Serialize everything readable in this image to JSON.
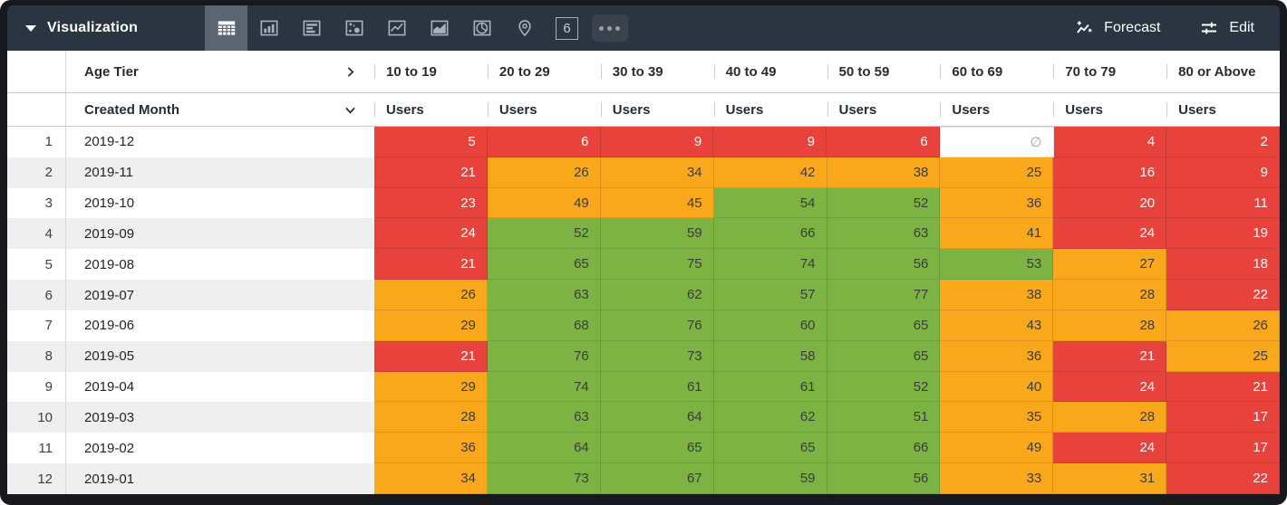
{
  "toolbar": {
    "title": "Visualization",
    "viz_tabs": [
      {
        "name": "table",
        "selected": true
      },
      {
        "name": "bar",
        "selected": false
      },
      {
        "name": "row",
        "selected": false
      },
      {
        "name": "scatter",
        "selected": false
      },
      {
        "name": "line",
        "selected": false
      },
      {
        "name": "area",
        "selected": false
      },
      {
        "name": "pie",
        "selected": false
      },
      {
        "name": "map",
        "selected": false
      },
      {
        "name": "single-value",
        "selected": false,
        "glyph": "6"
      },
      {
        "name": "more",
        "selected": false
      }
    ],
    "forecast_label": "Forecast",
    "edit_label": "Edit"
  },
  "table": {
    "pivot_field": "Age Tier",
    "row_field": "Created Month",
    "measure": "Users",
    "columns": [
      "10 to 19",
      "20 to 29",
      "30 to 39",
      "40 to 49",
      "50 to 59",
      "60 to 69",
      "70 to 79",
      "80 or Above"
    ],
    "null_symbol": "∅",
    "rows": [
      {
        "n": "1",
        "month": "2019-12",
        "cells": [
          [
            5,
            "r"
          ],
          [
            6,
            "r"
          ],
          [
            9,
            "r"
          ],
          [
            9,
            "r"
          ],
          [
            6,
            "r"
          ],
          [
            null,
            "n"
          ],
          [
            4,
            "r"
          ],
          [
            2,
            "r"
          ]
        ]
      },
      {
        "n": "2",
        "month": "2019-11",
        "cells": [
          [
            21,
            "r"
          ],
          [
            26,
            "o"
          ],
          [
            34,
            "o"
          ],
          [
            42,
            "o"
          ],
          [
            38,
            "o"
          ],
          [
            25,
            "o"
          ],
          [
            16,
            "r"
          ],
          [
            9,
            "r"
          ]
        ]
      },
      {
        "n": "3",
        "month": "2019-10",
        "cells": [
          [
            23,
            "r"
          ],
          [
            49,
            "o"
          ],
          [
            45,
            "o"
          ],
          [
            54,
            "g"
          ],
          [
            52,
            "g"
          ],
          [
            36,
            "o"
          ],
          [
            20,
            "r"
          ],
          [
            11,
            "r"
          ]
        ]
      },
      {
        "n": "4",
        "month": "2019-09",
        "cells": [
          [
            24,
            "r"
          ],
          [
            52,
            "g"
          ],
          [
            59,
            "g"
          ],
          [
            66,
            "g"
          ],
          [
            63,
            "g"
          ],
          [
            41,
            "o"
          ],
          [
            24,
            "r"
          ],
          [
            19,
            "r"
          ]
        ]
      },
      {
        "n": "5",
        "month": "2019-08",
        "cells": [
          [
            21,
            "r"
          ],
          [
            65,
            "g"
          ],
          [
            75,
            "g"
          ],
          [
            74,
            "g"
          ],
          [
            56,
            "g"
          ],
          [
            53,
            "g"
          ],
          [
            27,
            "o"
          ],
          [
            18,
            "r"
          ]
        ]
      },
      {
        "n": "6",
        "month": "2019-07",
        "cells": [
          [
            26,
            "o"
          ],
          [
            63,
            "g"
          ],
          [
            62,
            "g"
          ],
          [
            57,
            "g"
          ],
          [
            77,
            "g"
          ],
          [
            38,
            "o"
          ],
          [
            28,
            "o"
          ],
          [
            22,
            "r"
          ]
        ]
      },
      {
        "n": "7",
        "month": "2019-06",
        "cells": [
          [
            29,
            "o"
          ],
          [
            68,
            "g"
          ],
          [
            76,
            "g"
          ],
          [
            60,
            "g"
          ],
          [
            65,
            "g"
          ],
          [
            43,
            "o"
          ],
          [
            28,
            "o"
          ],
          [
            26,
            "o"
          ]
        ]
      },
      {
        "n": "8",
        "month": "2019-05",
        "cells": [
          [
            21,
            "r"
          ],
          [
            76,
            "g"
          ],
          [
            73,
            "g"
          ],
          [
            58,
            "g"
          ],
          [
            65,
            "g"
          ],
          [
            36,
            "o"
          ],
          [
            21,
            "r"
          ],
          [
            25,
            "o"
          ]
        ]
      },
      {
        "n": "9",
        "month": "2019-04",
        "cells": [
          [
            29,
            "o"
          ],
          [
            74,
            "g"
          ],
          [
            61,
            "g"
          ],
          [
            61,
            "g"
          ],
          [
            52,
            "g"
          ],
          [
            40,
            "o"
          ],
          [
            24,
            "r"
          ],
          [
            21,
            "r"
          ]
        ]
      },
      {
        "n": "10",
        "month": "2019-03",
        "cells": [
          [
            28,
            "o"
          ],
          [
            63,
            "g"
          ],
          [
            64,
            "g"
          ],
          [
            62,
            "g"
          ],
          [
            51,
            "g"
          ],
          [
            35,
            "o"
          ],
          [
            28,
            "o"
          ],
          [
            17,
            "r"
          ]
        ]
      },
      {
        "n": "11",
        "month": "2019-02",
        "cells": [
          [
            36,
            "o"
          ],
          [
            64,
            "g"
          ],
          [
            65,
            "g"
          ],
          [
            65,
            "g"
          ],
          [
            66,
            "g"
          ],
          [
            49,
            "o"
          ],
          [
            24,
            "r"
          ],
          [
            17,
            "r"
          ]
        ]
      },
      {
        "n": "12",
        "month": "2019-01",
        "cells": [
          [
            34,
            "o"
          ],
          [
            73,
            "g"
          ],
          [
            67,
            "g"
          ],
          [
            59,
            "g"
          ],
          [
            56,
            "g"
          ],
          [
            33,
            "o"
          ],
          [
            31,
            "o"
          ],
          [
            22,
            "r"
          ]
        ]
      }
    ]
  },
  "colors": {
    "red": "#E8423C",
    "orange": "#F9A81C",
    "green": "#7CB342",
    "null_bg": "#FFFFFF",
    "text_on_red": "#FFFFFF",
    "text_on_warm": "#3C3C3C",
    "null_text": "#9CA1A8"
  }
}
